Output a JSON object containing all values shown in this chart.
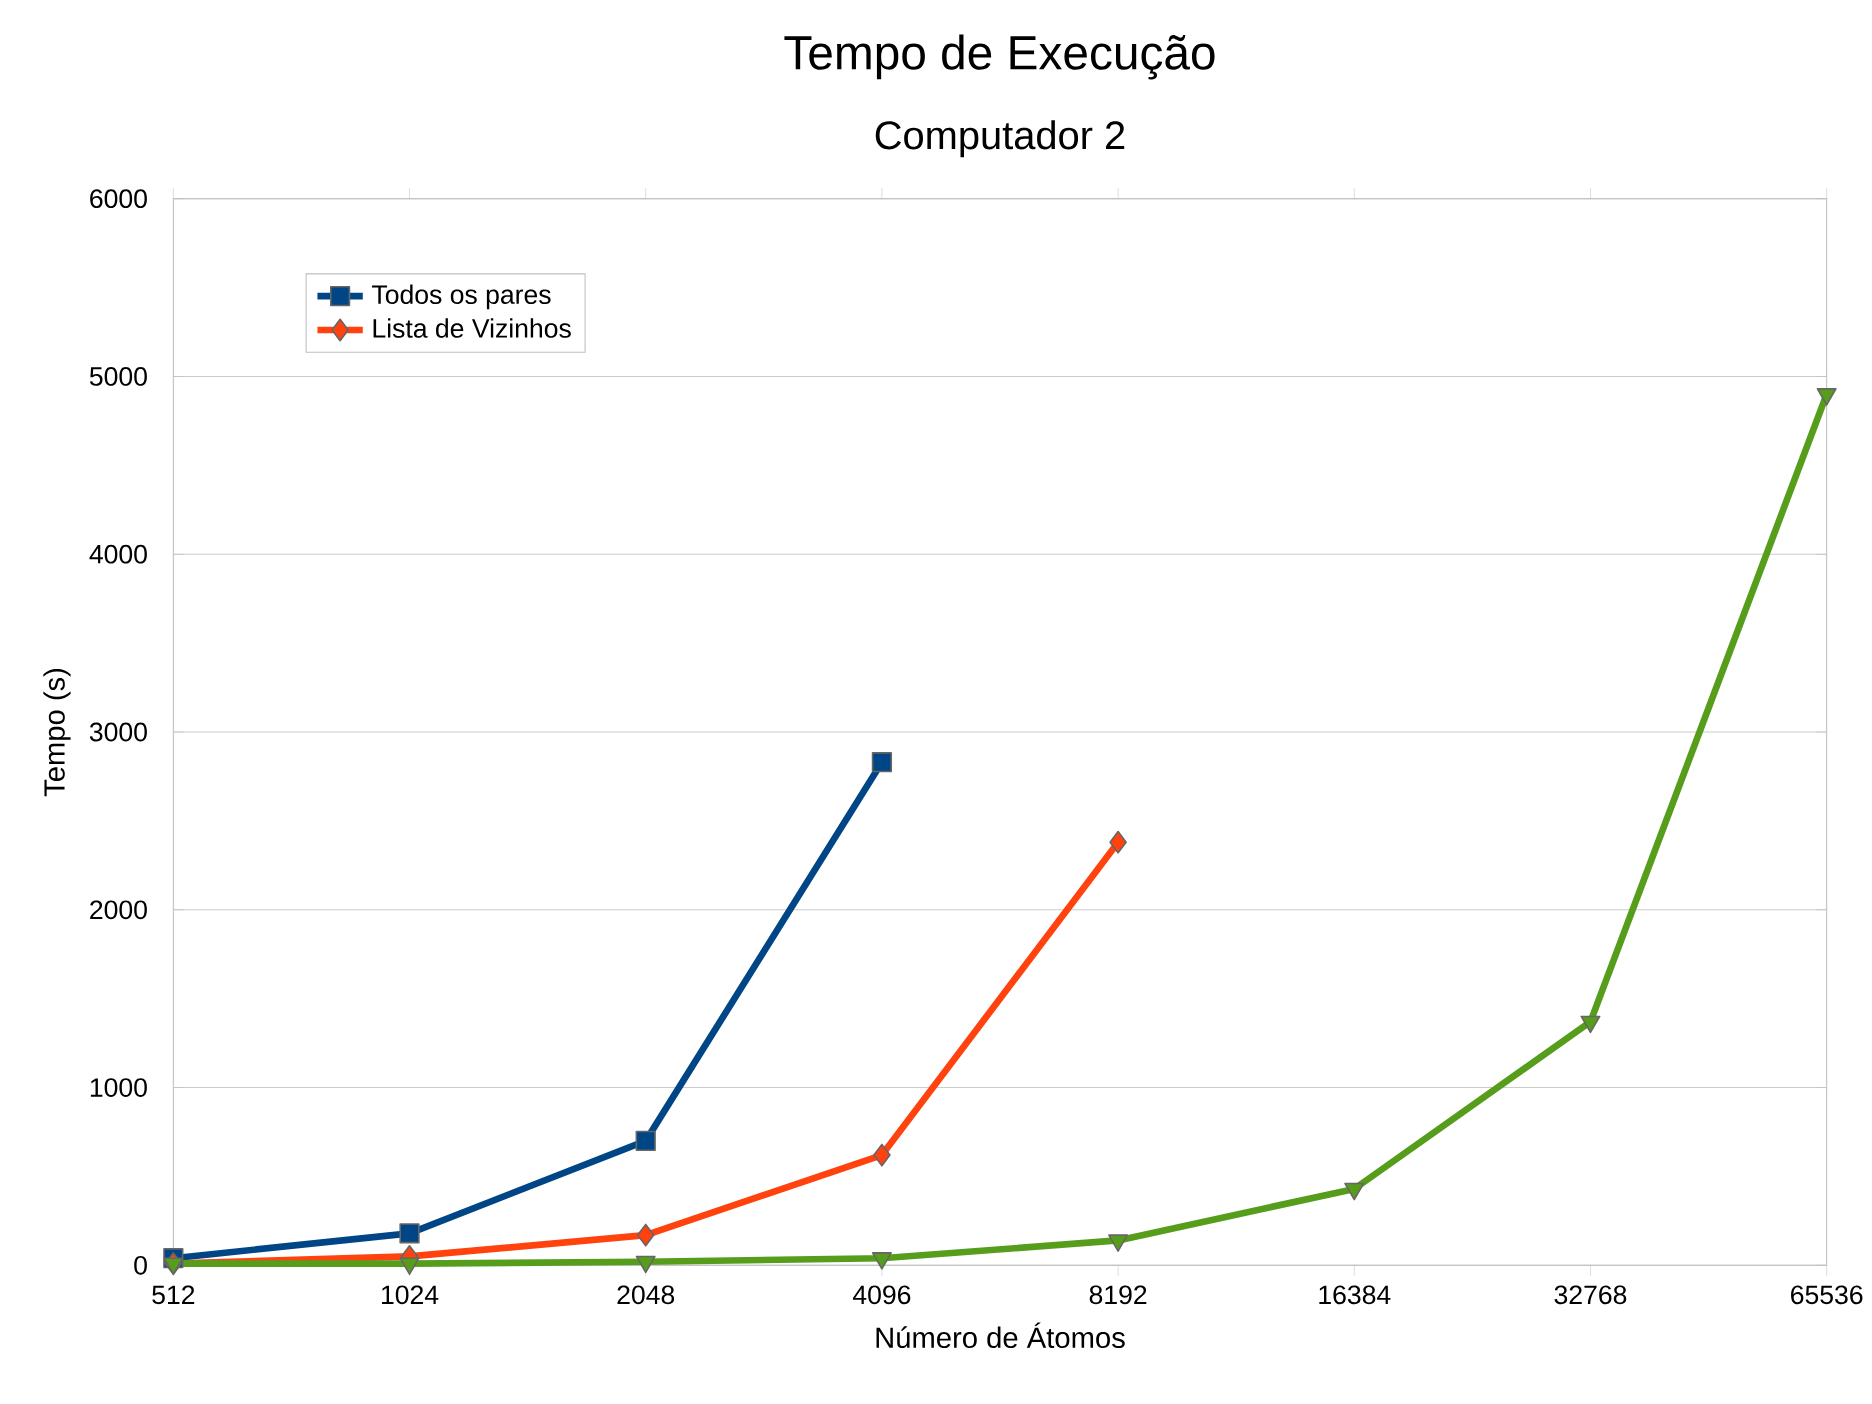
{
  "chart_data": {
    "type": "line",
    "title": "Tempo de Execução",
    "subtitle": "Computador 2",
    "xlabel": "Número de Átomos",
    "ylabel": "Tempo (s)",
    "categories": [
      "512",
      "1024",
      "2048",
      "4096",
      "8192",
      "16384",
      "32768",
      "65536"
    ],
    "series": [
      {
        "name": "Todos os pares",
        "color": "#004586",
        "marker": "square",
        "values": [
          40,
          180,
          700,
          2830,
          null,
          null,
          null,
          null
        ]
      },
      {
        "name": "Lista de Vizinhos",
        "color": "#ff420e",
        "marker": "diamond",
        "values": [
          10,
          50,
          170,
          620,
          2380,
          null,
          null,
          null
        ]
      },
      {
        "color": "#579d1c",
        "marker": "triangle",
        "values": [
          10,
          10,
          20,
          40,
          140,
          430,
          1370,
          4900
        ]
      }
    ],
    "ylim": [
      0,
      6000
    ],
    "yticks": [
      0,
      1000,
      2000,
      3000,
      4000,
      5000,
      6000
    ],
    "grid": "y",
    "legend": "top left",
    "line_style": "solid"
  }
}
